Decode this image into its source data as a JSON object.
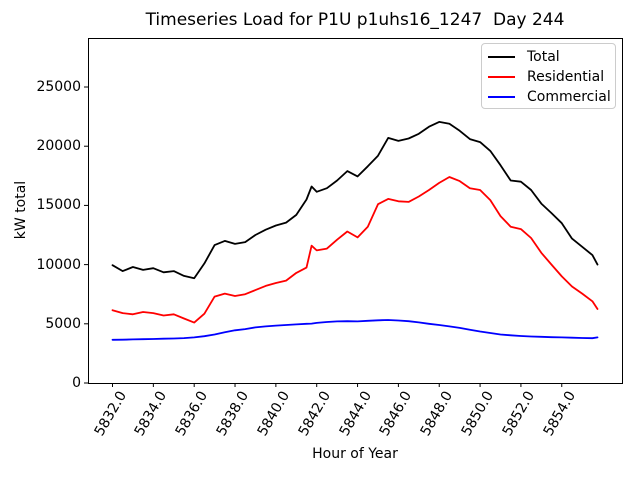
{
  "chart_data": {
    "type": "line",
    "title": "Timeseries Load for P1U p1uhs16_1247  Day 244",
    "xlabel": "Hour of Year",
    "ylabel": "kW total",
    "xlim": [
      5830.8,
      5856.95
    ],
    "ylim": [
      0,
      29140
    ],
    "grid": false,
    "legend_position": "upper right",
    "x_ticks": [
      5832,
      5834,
      5836,
      5838,
      5840,
      5842,
      5844,
      5846,
      5848,
      5850,
      5852,
      5854
    ],
    "x_tick_labels": [
      "5832.0",
      "5834.0",
      "5836.0",
      "5838.0",
      "5840.0",
      "5842.0",
      "5844.0",
      "5846.0",
      "5848.0",
      "5850.0",
      "5852.0",
      "5854.0"
    ],
    "y_ticks": [
      0,
      5000,
      10000,
      15000,
      20000,
      25000
    ],
    "y_tick_labels": [
      "0",
      "5000",
      "10000",
      "15000",
      "20000",
      "25000"
    ],
    "x": [
      5832,
      5832.5,
      5833,
      5833.5,
      5834,
      5834.5,
      5835,
      5835.5,
      5836,
      5836.5,
      5837,
      5837.5,
      5838,
      5838.5,
      5839,
      5839.5,
      5840,
      5840.5,
      5841,
      5841.5,
      5841.75,
      5842,
      5842.5,
      5843,
      5843.5,
      5844,
      5844.5,
      5845,
      5845.5,
      5846,
      5846.5,
      5847,
      5847.5,
      5848,
      5848.5,
      5849,
      5849.5,
      5850,
      5850.5,
      5851,
      5851.5,
      5852,
      5852.5,
      5853,
      5853.5,
      5854,
      5854.5,
      5855,
      5855.5,
      5855.75
    ],
    "series": [
      {
        "name": "Total",
        "color": "#000000",
        "values": [
          9950,
          9450,
          9800,
          9550,
          9700,
          9350,
          9450,
          9050,
          8850,
          10100,
          11650,
          12000,
          11750,
          11900,
          12500,
          12950,
          13300,
          13550,
          14200,
          15500,
          16600,
          16150,
          16450,
          17100,
          17900,
          17450,
          18300,
          19200,
          20700,
          20450,
          20650,
          21050,
          21650,
          22050,
          21900,
          21300,
          20600,
          20350,
          19600,
          18400,
          17100,
          17000,
          16300,
          15150,
          14350,
          13500,
          12200,
          11500,
          10800,
          10000
        ]
      },
      {
        "name": "Residential",
        "color": "#ff0000",
        "values": [
          6150,
          5900,
          5800,
          6000,
          5900,
          5700,
          5800,
          5450,
          5100,
          5850,
          7300,
          7550,
          7350,
          7500,
          7850,
          8200,
          8450,
          8650,
          9300,
          9750,
          11600,
          11200,
          11350,
          12100,
          12800,
          12300,
          13200,
          15100,
          15550,
          15350,
          15300,
          15750,
          16300,
          16900,
          17400,
          17050,
          16450,
          16300,
          15450,
          14100,
          13200,
          13000,
          12250,
          11000,
          10000,
          9000,
          8150,
          7550,
          6900,
          6250
        ]
      },
      {
        "name": "Commercial",
        "color": "#0000ff",
        "values": [
          3650,
          3660,
          3680,
          3700,
          3720,
          3740,
          3760,
          3790,
          3850,
          3950,
          4100,
          4280,
          4450,
          4550,
          4700,
          4780,
          4850,
          4900,
          4950,
          5000,
          5020,
          5080,
          5150,
          5200,
          5220,
          5200,
          5250,
          5300,
          5320,
          5280,
          5220,
          5120,
          5000,
          4900,
          4780,
          4650,
          4500,
          4350,
          4220,
          4100,
          4030,
          3970,
          3930,
          3900,
          3870,
          3850,
          3830,
          3800,
          3780,
          3850
        ]
      }
    ]
  }
}
